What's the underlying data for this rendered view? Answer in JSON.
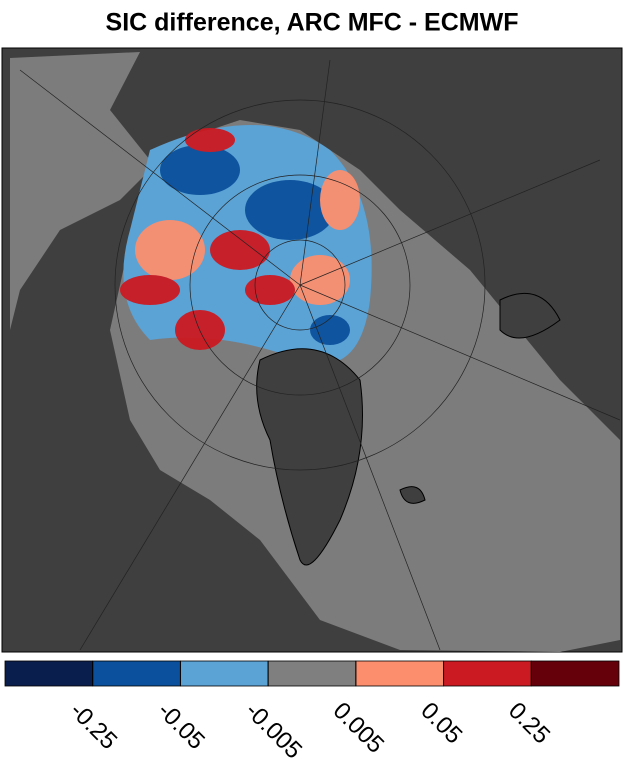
{
  "title": "SIC difference, ARC MFC - ECMWF",
  "colorbar": {
    "colors": [
      "#0a1e4e",
      "#0b509c",
      "#5ba2d5",
      "#7f7f7f",
      "#fc8e6e",
      "#cc1a22",
      "#65000b"
    ],
    "ticks": [
      -0.25,
      -0.05,
      -0.005,
      0.005,
      0.05,
      0.25
    ]
  }
}
